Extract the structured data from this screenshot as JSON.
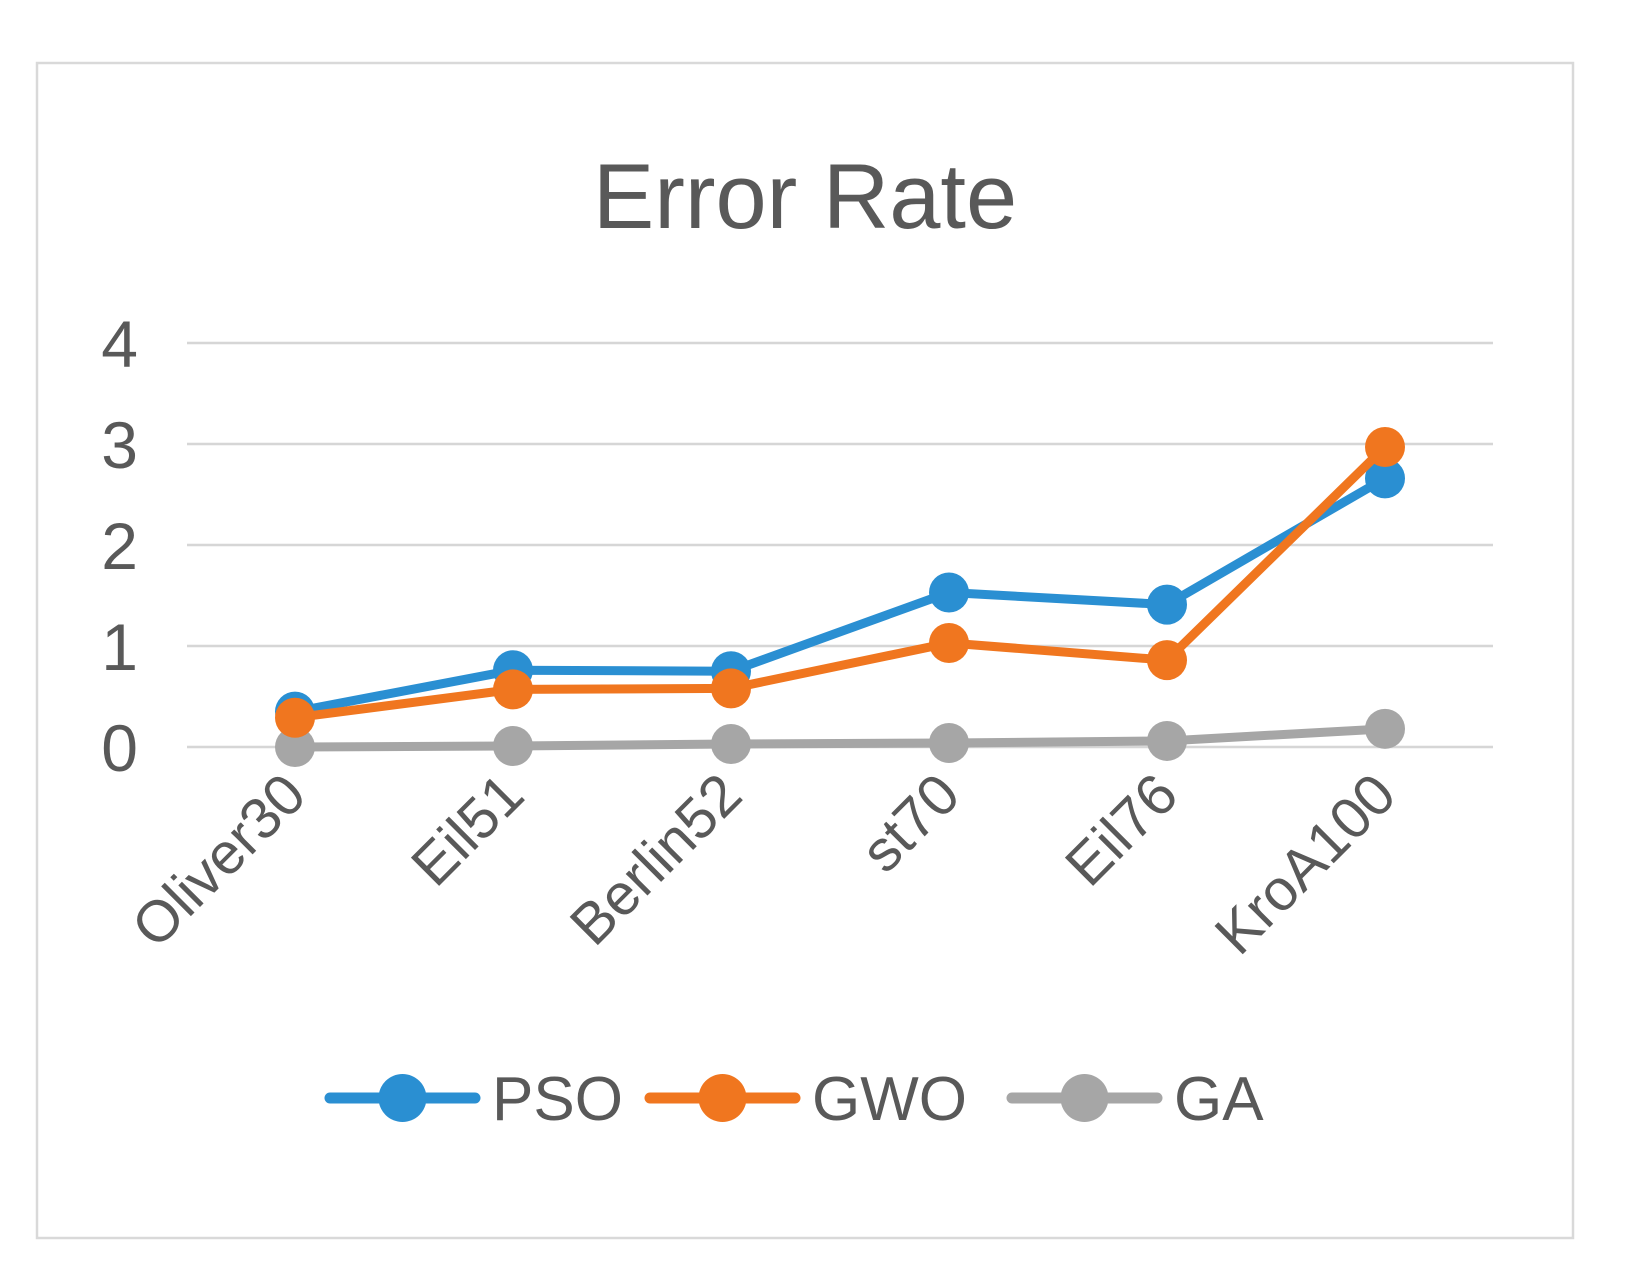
{
  "chart_data": {
    "type": "line",
    "title": "Error Rate",
    "categories": [
      "Oliver30",
      "Eil51",
      "Berlin52",
      "st70",
      "Eil76",
      "KroA100"
    ],
    "series": [
      {
        "name": "PSO",
        "color": "#2A8FD2",
        "values": [
          0.35,
          0.76,
          0.75,
          1.53,
          1.41,
          2.66
        ]
      },
      {
        "name": "GWO",
        "color": "#F0761F",
        "values": [
          0.29,
          0.57,
          0.58,
          1.03,
          0.86,
          2.97
        ]
      },
      {
        "name": "GA",
        "color": "#A6A6A6",
        "values": [
          0.0,
          0.01,
          0.03,
          0.04,
          0.06,
          0.18
        ]
      }
    ],
    "xlabel": "",
    "ylabel": "",
    "ylim": [
      0,
      4
    ],
    "yticks": [
      0,
      1,
      2,
      3,
      4
    ],
    "grid": true,
    "legend_position": "bottom",
    "legend_entries": [
      "PSO",
      "GWO",
      "GA"
    ]
  },
  "colors": {
    "title_text": "#595959",
    "axis_text": "#595959",
    "legend_text": "#595959",
    "gridline": "#D6D6D6",
    "frame_border": "#D9D9D9",
    "background": "#FFFFFF"
  }
}
